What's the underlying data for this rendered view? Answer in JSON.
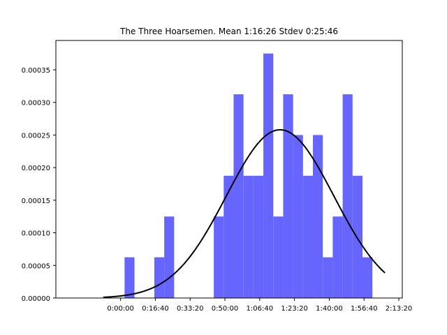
{
  "chart_data": {
    "type": "bar",
    "title": "The Three Hoarsemen. Mean 1:16:26 Stdev 0:25:46",
    "xlabel": "",
    "ylabel": "",
    "x_unit": "seconds (ticks formatted h:mm:ss)",
    "xlim": [
      -1860,
      8100
    ],
    "ylim": [
      0,
      0.000395
    ],
    "grid": false,
    "legend": "none",
    "x_ticks": [
      {
        "value": 0,
        "label": "0:00:00"
      },
      {
        "value": 1000,
        "label": "0:16:40"
      },
      {
        "value": 2000,
        "label": "0:33:20"
      },
      {
        "value": 3000,
        "label": "0:50:00"
      },
      {
        "value": 4000,
        "label": "1:06:40"
      },
      {
        "value": 5000,
        "label": "1:23:20"
      },
      {
        "value": 6000,
        "label": "1:40:00"
      },
      {
        "value": 7000,
        "label": "1:56:40"
      },
      {
        "value": 8000,
        "label": "2:13:20"
      }
    ],
    "y_ticks": [
      {
        "value": 0,
        "label": "0.00000"
      },
      {
        "value": 5e-05,
        "label": "0.00005"
      },
      {
        "value": 0.0001,
        "label": "0.00010"
      },
      {
        "value": 0.00015,
        "label": "0.00015"
      },
      {
        "value": 0.0002,
        "label": "0.00020"
      },
      {
        "value": 0.00025,
        "label": "0.00025"
      },
      {
        "value": 0.0003,
        "label": "0.00030"
      },
      {
        "value": 0.00035,
        "label": "0.00035"
      }
    ],
    "histogram": {
      "color": "#6666ff",
      "bins": [
        {
          "x0": 115,
          "x1": 400,
          "density": 6.25e-05
        },
        {
          "x0": 970,
          "x1": 1255,
          "density": 6.25e-05
        },
        {
          "x0": 1255,
          "x1": 1540,
          "density": 0.000125
        },
        {
          "x0": 2680,
          "x1": 2965,
          "density": 0.000125
        },
        {
          "x0": 2965,
          "x1": 3250,
          "density": 0.0001875
        },
        {
          "x0": 3250,
          "x1": 3535,
          "density": 0.0003125
        },
        {
          "x0": 3535,
          "x1": 3820,
          "density": 0.0001875
        },
        {
          "x0": 3820,
          "x1": 4105,
          "density": 0.0001875
        },
        {
          "x0": 4105,
          "x1": 4390,
          "density": 0.000375
        },
        {
          "x0": 4390,
          "x1": 4675,
          "density": 0.000125
        },
        {
          "x0": 4675,
          "x1": 4960,
          "density": 0.0003125
        },
        {
          "x0": 4960,
          "x1": 5245,
          "density": 0.00025
        },
        {
          "x0": 5245,
          "x1": 5530,
          "density": 0.0001875
        },
        {
          "x0": 5530,
          "x1": 5815,
          "density": 0.00025
        },
        {
          "x0": 5815,
          "x1": 6100,
          "density": 6.25e-05
        },
        {
          "x0": 6100,
          "x1": 6385,
          "density": 0.000125
        },
        {
          "x0": 6385,
          "x1": 6670,
          "density": 0.0003125
        },
        {
          "x0": 6670,
          "x1": 6955,
          "density": 0.0001875
        },
        {
          "x0": 6955,
          "x1": 7240,
          "density": 6.25e-05
        }
      ]
    },
    "normal_curve": {
      "color": "#000000",
      "mean_seconds": 4586,
      "stdev_seconds": 1546,
      "x_range": [
        -500,
        7600
      ]
    }
  }
}
